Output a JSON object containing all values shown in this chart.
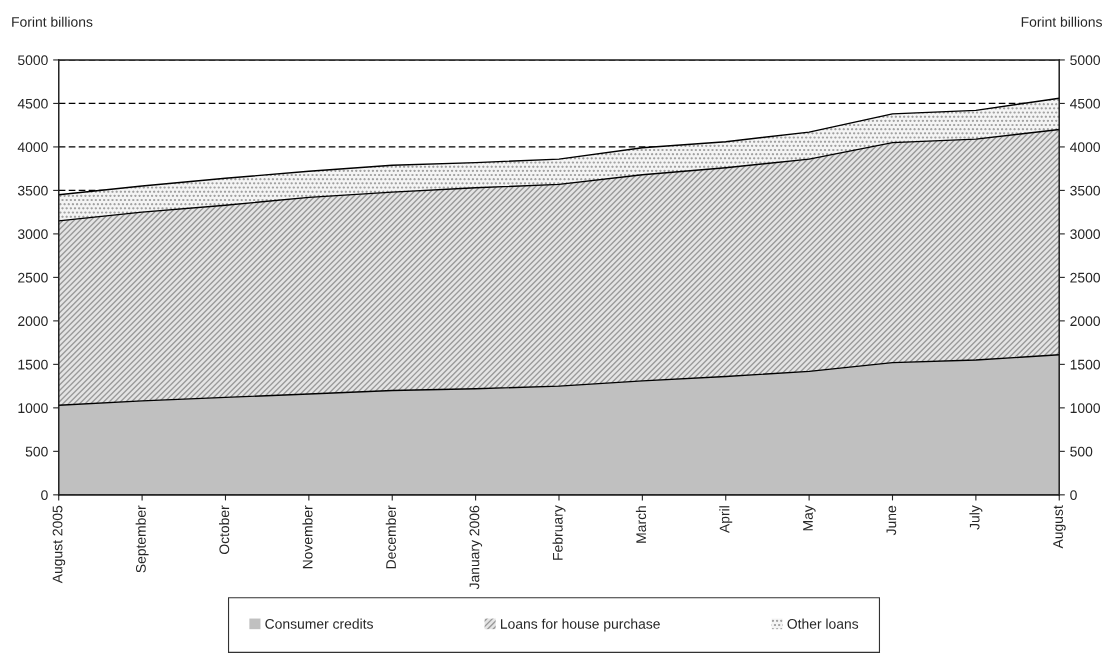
{
  "chart_data": {
    "type": "area",
    "stacked": true,
    "ylabel": "Forint billions",
    "y2label": "Forint billions",
    "categories": [
      "August 2005",
      "September",
      "October",
      "November",
      "December",
      "January 2006",
      "February",
      "March",
      "April",
      "May",
      "June",
      "July",
      "August"
    ],
    "series": [
      {
        "name": "Consumer credits",
        "color": "#c0c0c0",
        "values": [
          1030,
          1080,
          1120,
          1160,
          1200,
          1220,
          1250,
          1310,
          1360,
          1420,
          1520,
          1550,
          1610
        ]
      },
      {
        "name": "Loans for house purchase",
        "color": "#e4e4e4",
        "values": [
          2120,
          2170,
          2210,
          2260,
          2280,
          2310,
          2320,
          2370,
          2400,
          2440,
          2530,
          2540,
          2590
        ]
      },
      {
        "name": "Other loans",
        "color": "#f4f4f4",
        "values": [
          300,
          300,
          310,
          300,
          310,
          290,
          290,
          310,
          300,
          310,
          330,
          330,
          360
        ]
      }
    ],
    "ylim": [
      0,
      5000
    ],
    "yticks": [
      0,
      500,
      1000,
      1500,
      2000,
      2500,
      3000,
      3500,
      4000,
      4500,
      5000
    ],
    "y2lim": [
      0,
      5000
    ],
    "y2ticks": [
      0,
      500,
      1000,
      1500,
      2000,
      2500,
      3000,
      3500,
      4000,
      4500,
      5000
    ],
    "grid": "y",
    "legend": "bottom"
  }
}
